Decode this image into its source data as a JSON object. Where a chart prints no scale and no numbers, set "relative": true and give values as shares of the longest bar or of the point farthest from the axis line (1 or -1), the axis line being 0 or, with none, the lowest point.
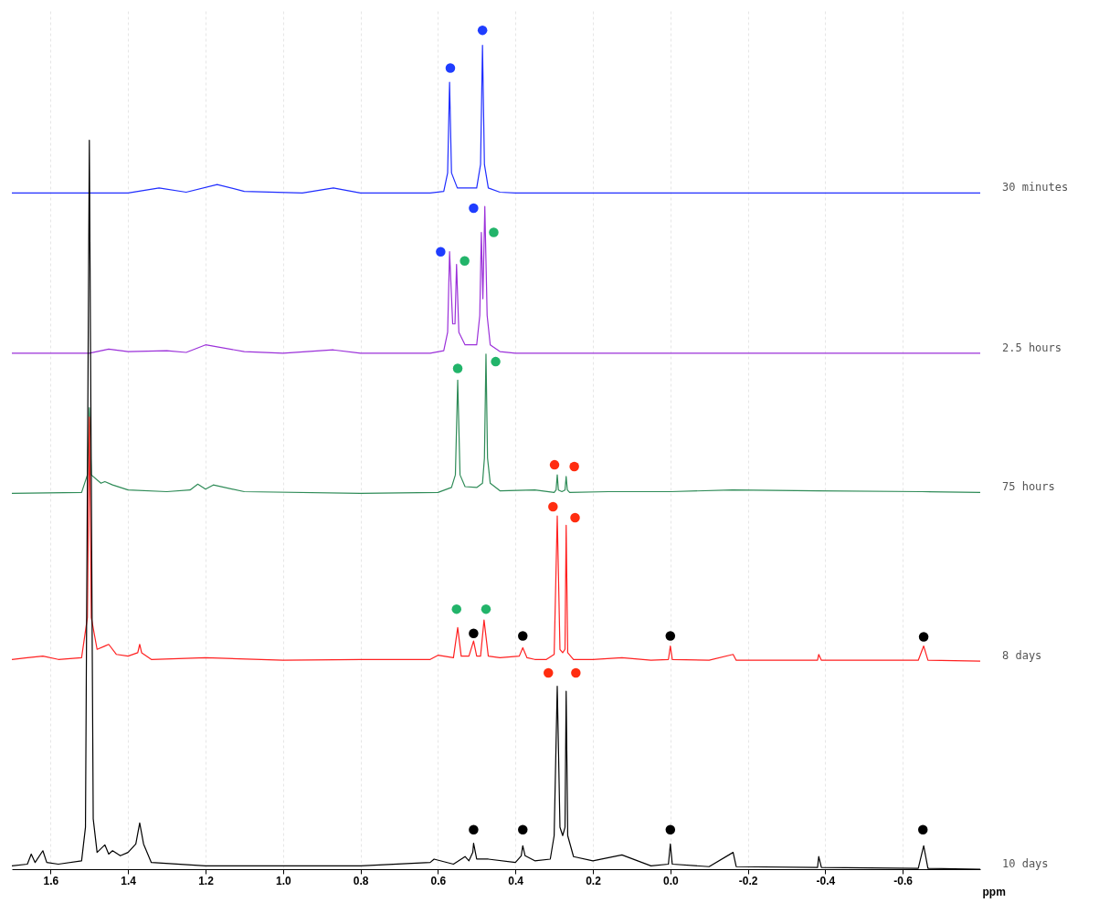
{
  "chart_data": {
    "type": "line",
    "xlabel": "ppm",
    "relative": true,
    "grid": "x",
    "line_style": "solid",
    "xlim": [
      1.7,
      -0.8
    ],
    "xticks": [
      1.6,
      1.4,
      1.2,
      {
        "value": 1,
        "label": "1.0"
      },
      0.8,
      0.6,
      0.4,
      0.2,
      {
        "value": 0,
        "label": "0.0"
      },
      -0.2,
      -0.4,
      -0.6
    ],
    "series": [
      {
        "name": "30 minutes",
        "marker": "none",
        "color": "#1f2dff",
        "x": [
          1.7,
          1.4,
          1.32,
          1.25,
          1.17,
          1.1,
          0.95,
          0.87,
          0.8,
          0.62,
          0.585,
          0.575,
          0.57,
          0.565,
          0.55,
          0.5,
          0.49,
          0.485,
          0.48,
          0.47,
          0.44,
          0.4,
          -0.8
        ],
        "values": [
          0.806,
          0.806,
          0.812,
          0.807,
          0.816,
          0.808,
          0.806,
          0.812,
          0.806,
          0.806,
          0.808,
          0.83,
          0.938,
          0.83,
          0.812,
          0.812,
          0.84,
          0.982,
          0.84,
          0.812,
          0.807,
          0.806,
          0.806
        ]
      },
      {
        "name": "2.5 hours",
        "marker": "none",
        "color": "#9b30d9",
        "x": [
          1.7,
          1.5,
          1.45,
          1.4,
          1.3,
          1.25,
          1.2,
          1.1,
          1.0,
          0.87,
          0.8,
          0.62,
          0.585,
          0.575,
          0.57,
          0.562,
          0.556,
          0.552,
          0.546,
          0.53,
          0.5,
          0.492,
          0.488,
          0.484,
          0.479,
          0.473,
          0.465,
          0.44,
          0.4,
          -0.8
        ],
        "values": [
          0.615,
          0.615,
          0.62,
          0.617,
          0.618,
          0.616,
          0.625,
          0.617,
          0.615,
          0.619,
          0.615,
          0.615,
          0.618,
          0.64,
          0.736,
          0.65,
          0.65,
          0.721,
          0.64,
          0.625,
          0.625,
          0.66,
          0.759,
          0.68,
          0.79,
          0.66,
          0.625,
          0.617,
          0.615,
          0.615
        ]
      },
      {
        "name": "75 hours",
        "marker": "none",
        "color": "#2e8b57",
        "x": [
          1.7,
          1.52,
          1.505,
          1.5,
          1.495,
          1.47,
          1.46,
          1.44,
          1.4,
          1.3,
          1.24,
          1.22,
          1.2,
          1.18,
          1.1,
          0.8,
          0.6,
          0.565,
          0.555,
          0.549,
          0.543,
          0.53,
          0.5,
          0.485,
          0.48,
          0.476,
          0.472,
          0.465,
          0.44,
          0.35,
          0.3,
          0.295,
          0.292,
          0.289,
          0.28,
          0.272,
          0.269,
          0.266,
          0.26,
          0.16,
          0.0,
          -0.16,
          -0.38,
          -0.65,
          -0.8
        ],
        "values": [
          0.448,
          0.449,
          0.47,
          0.55,
          0.47,
          0.46,
          0.462,
          0.458,
          0.452,
          0.45,
          0.452,
          0.459,
          0.453,
          0.458,
          0.45,
          0.448,
          0.449,
          0.455,
          0.47,
          0.583,
          0.47,
          0.456,
          0.455,
          0.46,
          0.49,
          0.614,
          0.49,
          0.46,
          0.451,
          0.452,
          0.449,
          0.452,
          0.47,
          0.452,
          0.45,
          0.452,
          0.468,
          0.452,
          0.449,
          0.45,
          0.45,
          0.452,
          0.451,
          0.45,
          0.449
        ]
      },
      {
        "name": "8 days",
        "marker": "none",
        "color": "#ff2020",
        "x": [
          1.7,
          1.66,
          1.62,
          1.58,
          1.52,
          1.505,
          1.5,
          1.495,
          1.48,
          1.46,
          1.45,
          1.43,
          1.4,
          1.375,
          1.37,
          1.365,
          1.34,
          1.2,
          1.0,
          0.8,
          0.62,
          0.6,
          0.56,
          0.549,
          0.54,
          0.52,
          0.508,
          0.5,
          0.49,
          0.481,
          0.47,
          0.44,
          0.39,
          0.381,
          0.37,
          0.35,
          0.32,
          0.3,
          0.292,
          0.285,
          0.278,
          0.272,
          0.269,
          0.265,
          0.25,
          0.2,
          0.125,
          0.05,
          0.005,
          0.0,
          -0.005,
          -0.1,
          -0.162,
          -0.17,
          -0.38,
          -0.383,
          -0.39,
          -0.64,
          -0.654,
          -0.665,
          -0.8
        ],
        "values": [
          0.25,
          0.252,
          0.254,
          0.25,
          0.252,
          0.3,
          0.539,
          0.3,
          0.262,
          0.266,
          0.268,
          0.256,
          0.254,
          0.258,
          0.268,
          0.258,
          0.25,
          0.252,
          0.249,
          0.25,
          0.25,
          0.255,
          0.252,
          0.288,
          0.254,
          0.254,
          0.272,
          0.254,
          0.254,
          0.297,
          0.254,
          0.252,
          0.254,
          0.264,
          0.252,
          0.25,
          0.25,
          0.256,
          0.421,
          0.262,
          0.258,
          0.262,
          0.41,
          0.258,
          0.25,
          0.25,
          0.252,
          0.249,
          0.25,
          0.266,
          0.25,
          0.249,
          0.256,
          0.249,
          0.249,
          0.256,
          0.249,
          0.249,
          0.266,
          0.249,
          0.248
        ]
      },
      {
        "name": "10 days",
        "marker": "none",
        "color": "#000000",
        "x": [
          1.7,
          1.66,
          1.65,
          1.64,
          1.62,
          1.61,
          1.58,
          1.52,
          1.51,
          1.5,
          1.49,
          1.48,
          1.46,
          1.45,
          1.44,
          1.42,
          1.4,
          1.38,
          1.37,
          1.36,
          1.34,
          1.2,
          1.0,
          0.8,
          0.62,
          0.61,
          0.56,
          0.53,
          0.52,
          0.51,
          0.508,
          0.5,
          0.47,
          0.4,
          0.385,
          0.381,
          0.375,
          0.35,
          0.31,
          0.3,
          0.292,
          0.285,
          0.278,
          0.272,
          0.269,
          0.265,
          0.25,
          0.2,
          0.125,
          0.05,
          0.005,
          0.0,
          -0.005,
          -0.1,
          -0.162,
          -0.17,
          -0.38,
          -0.383,
          -0.39,
          -0.64,
          -0.654,
          -0.665,
          -0.8
        ],
        "values": [
          0.004,
          0.006,
          0.018,
          0.008,
          0.022,
          0.008,
          0.006,
          0.01,
          0.05,
          0.869,
          0.06,
          0.02,
          0.029,
          0.018,
          0.022,
          0.016,
          0.02,
          0.03,
          0.055,
          0.03,
          0.008,
          0.004,
          0.004,
          0.004,
          0.008,
          0.012,
          0.006,
          0.015,
          0.01,
          0.02,
          0.031,
          0.012,
          0.012,
          0.008,
          0.016,
          0.028,
          0.016,
          0.01,
          0.012,
          0.04,
          0.218,
          0.05,
          0.04,
          0.05,
          0.212,
          0.04,
          0.015,
          0.01,
          0.017,
          0.004,
          0.006,
          0.03,
          0.006,
          0.003,
          0.02,
          0.003,
          0.002,
          0.015,
          0.002,
          0.001,
          0.028,
          0.001,
          0.0
        ]
      },
      {
        "type": "scatter",
        "marker": "circle",
        "color": "#1f3dff",
        "x": [
          0.568,
          0.485,
          0.593,
          0.508
        ],
        "values": [
          0.955,
          1.0,
          0.736,
          0.788
        ]
      },
      {
        "type": "scatter",
        "marker": "circle",
        "color": "#22b46a",
        "x": [
          0.531,
          0.456,
          0.549,
          0.451,
          0.552,
          0.476
        ],
        "values": [
          0.725,
          0.759,
          0.597,
          0.605,
          0.31,
          0.31
        ]
      },
      {
        "type": "scatter",
        "marker": "circle",
        "color": "#ff2d10",
        "x": [
          0.299,
          0.248,
          0.303,
          0.246,
          0.315,
          0.244
        ],
        "values": [
          0.482,
          0.48,
          0.432,
          0.419,
          0.234,
          0.234
        ]
      },
      {
        "type": "scatter",
        "marker": "circle",
        "color": "#000000",
        "x": [
          0.508,
          0.381,
          0.0,
          -0.654,
          0.508,
          0.381,
          0.0,
          -0.652
        ],
        "values": [
          0.281,
          0.278,
          0.278,
          0.277,
          0.047,
          0.047,
          0.047,
          0.047
        ]
      }
    ]
  }
}
